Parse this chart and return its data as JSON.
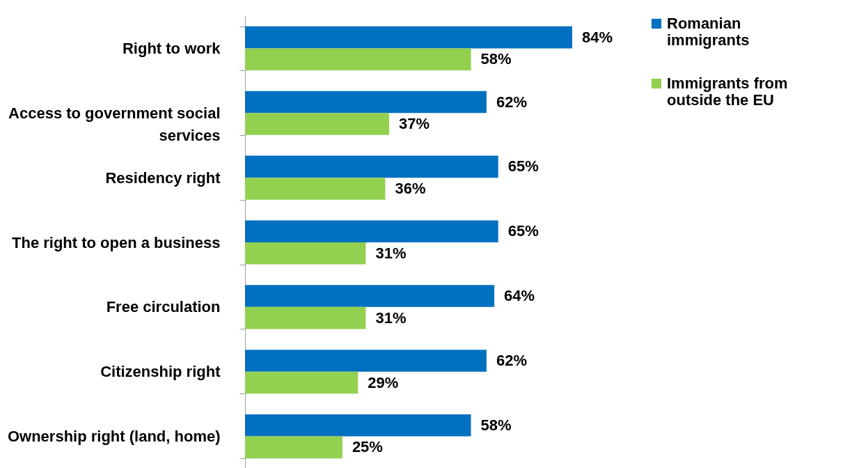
{
  "chart_data": {
    "type": "bar",
    "orientation": "horizontal",
    "categories": [
      "Right to work",
      "Access to government social services",
      "Residency right",
      "The right to open a business",
      "Free circulation",
      "Citizenship right",
      "Ownership right (land, home)"
    ],
    "series": [
      {
        "name": "Romanian immigrants",
        "color": "#0070c0",
        "values": [
          84,
          62,
          65,
          65,
          64,
          62,
          58
        ],
        "value_labels": [
          "84%",
          "62%",
          "65%",
          "65%",
          "64%",
          "62%",
          "58%"
        ]
      },
      {
        "name": "Immigrants from outside the EU",
        "color": "#92d050",
        "values": [
          58,
          37,
          36,
          31,
          31,
          29,
          25
        ],
        "value_labels": [
          "58%",
          "37%",
          "36%",
          "31%",
          "31%",
          "29%",
          "25%"
        ]
      }
    ],
    "legend": "right"
  }
}
